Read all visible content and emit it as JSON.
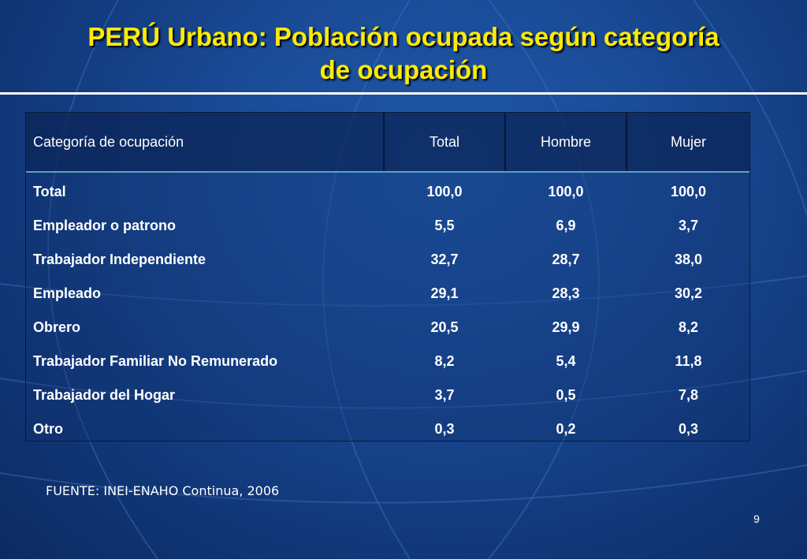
{
  "slide": {
    "title_line1": "PERÚ Urbano: Población ocupada según categoría",
    "title_line2": "de ocupación",
    "source": "FUENTE: INEI-ENAHO Continua, 2006",
    "page_number": "9"
  },
  "table": {
    "headers": [
      "Categoría de ocupación",
      "Total",
      "Hombre",
      "Mujer"
    ],
    "rows": [
      [
        "Total",
        "100,0",
        "100,0",
        "100,0"
      ],
      [
        "Empleador o patrono",
        "5,5",
        "6,9",
        "3,7"
      ],
      [
        "Trabajador Independiente",
        "32,7",
        "28,7",
        "38,0"
      ],
      [
        "Empleado",
        "29,1",
        "28,3",
        "30,2"
      ],
      [
        "Obrero",
        "20,5",
        "29,9",
        "8,2"
      ],
      [
        "Trabajador Familiar No Remunerado",
        "8,2",
        "5,4",
        "11,8"
      ],
      [
        "Trabajador del Hogar",
        "3,7",
        "0,5",
        "7,8"
      ],
      [
        "Otro",
        "0,3",
        "0,2",
        "0,3"
      ]
    ]
  },
  "colors": {
    "title": "#ffeb00",
    "background": "#1a4b97",
    "text": "#ffffff"
  }
}
